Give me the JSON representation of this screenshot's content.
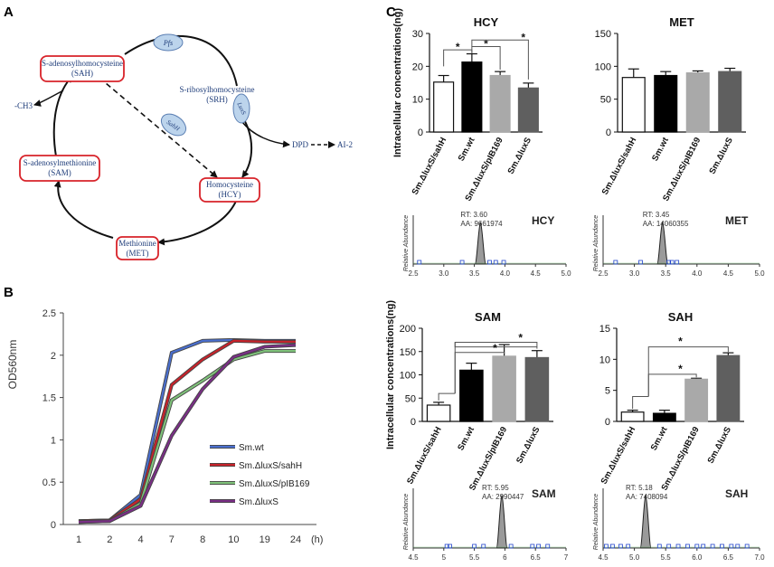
{
  "panels": {
    "A": "A",
    "B": "B",
    "C": "C"
  },
  "pathway": {
    "nodes": {
      "sah": [
        "S-adenosylhomocysteine",
        "(SAH)"
      ],
      "srh": [
        "S-ribosylhomocysteine",
        "(SRH)"
      ],
      "sam": [
        "S-adenosylmethionine",
        "(SAM)"
      ],
      "hcy": [
        "Homocysteine",
        "(HCY)"
      ],
      "met": [
        "Methionine",
        "(MET)"
      ],
      "ch3": "-CH3",
      "dpd": "DPD",
      "ai2": "AI-2"
    },
    "enzymes": {
      "pfs": "Pfs",
      "luxs": "LuxS",
      "sahh": "SahH"
    }
  },
  "chart_data": [
    {
      "id": "growth",
      "type": "line",
      "ylabel": "OD560nm",
      "xlabel": "(h)",
      "categories": [
        "1",
        "2",
        "4",
        "7",
        "8",
        "10",
        "19",
        "24"
      ],
      "ylim": [
        0,
        2.5
      ],
      "yticks": [
        "0",
        "0.5",
        "1",
        "1.5",
        "2",
        "2.5"
      ],
      "series": [
        {
          "name": "Sm.wt",
          "color": "#4a6fcf",
          "values": [
            0.04,
            0.05,
            0.35,
            2.03,
            2.17,
            2.18,
            2.17,
            2.17
          ]
        },
        {
          "name": "Sm.ΔluxS/sahH",
          "color": "#c8232b",
          "values": [
            0.04,
            0.05,
            0.3,
            1.65,
            1.95,
            2.17,
            2.16,
            2.16
          ]
        },
        {
          "name": "Sm.ΔluxS/pIB169",
          "color": "#7fc27a",
          "values": [
            0.03,
            0.04,
            0.25,
            1.47,
            1.7,
            1.95,
            2.05,
            2.05
          ]
        },
        {
          "name": "Sm.ΔluxS",
          "color": "#7a2f86",
          "values": [
            0.03,
            0.04,
            0.22,
            1.05,
            1.6,
            1.98,
            2.1,
            2.12
          ]
        }
      ]
    },
    {
      "id": "hcy",
      "type": "bar",
      "title": "HCY",
      "ylabel": "Intracellular concentrations(ng)",
      "categories": [
        "Sm.ΔluxS/sahH",
        "Sm.wt",
        "Sm.ΔluxS/pIB169",
        "Sm.ΔluxS"
      ],
      "values": [
        15.2,
        21.3,
        17.2,
        13.4
      ],
      "errors": [
        2.0,
        2.5,
        1.2,
        1.5
      ],
      "ylim": [
        0,
        30
      ],
      "yticks": [
        "0",
        "10",
        "20",
        "30"
      ],
      "significance": [
        "*",
        "*",
        "*"
      ]
    },
    {
      "id": "met",
      "type": "bar",
      "title": "MET",
      "categories": [
        "Sm.ΔluxS/sahH",
        "Sm.wt",
        "Sm.ΔluxS/pIB169",
        "Sm.ΔluxS"
      ],
      "values": [
        83,
        86,
        90,
        92
      ],
      "errors": [
        13,
        6,
        3,
        5
      ],
      "ylim": [
        0,
        150
      ],
      "yticks": [
        "0",
        "50",
        "100",
        "150"
      ]
    },
    {
      "id": "sam",
      "type": "bar",
      "title": "SAM",
      "ylabel": "Intracellular concentrations(ng)",
      "categories": [
        "Sm.ΔluxS/sahH",
        "Sm.wt",
        "Sm.ΔluxS/pIB169",
        "Sm.ΔluxS"
      ],
      "values": [
        35,
        110,
        140,
        137
      ],
      "errors": [
        6,
        15,
        25,
        15
      ],
      "ylim": [
        0,
        200
      ],
      "yticks": [
        "0",
        "50",
        "100",
        "150",
        "200"
      ],
      "significance": [
        "*",
        "*"
      ]
    },
    {
      "id": "sah",
      "type": "bar",
      "title": "SAH",
      "categories": [
        "Sm.ΔluxS/sahH",
        "Sm.wt",
        "Sm.ΔluxS/pIB169",
        "Sm.ΔluxS"
      ],
      "values": [
        1.5,
        1.3,
        6.8,
        10.6
      ],
      "errors": [
        0.3,
        0.5,
        0.15,
        0.45
      ],
      "ylim": [
        0,
        15
      ],
      "yticks": [
        "0",
        "5",
        "10",
        "15"
      ],
      "significance": [
        "*",
        "*"
      ]
    },
    {
      "id": "chrom_hcy",
      "type": "line",
      "title": "HCY",
      "ylabel": "Relative Abundance",
      "rt_label": "RT: 3.60",
      "aa_label": "AA: 9661974",
      "peak_rt": 3.6,
      "xlim": [
        2.5,
        5.0
      ],
      "xticks": [
        "2.5",
        "3.0",
        "3.5",
        "4.0",
        "4.5",
        "5.0"
      ]
    },
    {
      "id": "chrom_met",
      "type": "line",
      "title": "MET",
      "ylabel": "Relative Abundance",
      "rt_label": "RT: 3.45",
      "aa_label": "AA: 14060355",
      "peak_rt": 3.45,
      "xlim": [
        2.5,
        5.0
      ],
      "xticks": [
        "2.5",
        "3.0",
        "3.5",
        "4.0",
        "4.5",
        "5.0"
      ]
    },
    {
      "id": "chrom_sam",
      "type": "line",
      "title": "SAM",
      "ylabel": "Relative Abundance",
      "rt_label": "RT: 5.95",
      "aa_label": "AA: 2990447",
      "peak_rt": 5.95,
      "xlim": [
        4.5,
        7.0
      ],
      "xticks": [
        "4.5",
        "5",
        "5.5",
        "6",
        "6.5",
        "7"
      ]
    },
    {
      "id": "chrom_sah",
      "type": "line",
      "title": "SAH",
      "ylabel": "Relative Abundance",
      "rt_label": "RT: 5.18",
      "aa_label": "AA: 7408094",
      "peak_rt": 5.18,
      "xlim": [
        4.5,
        7.0
      ],
      "xticks": [
        "4.5",
        "5.0",
        "5.5",
        "6.0",
        "6.5",
        "7.0"
      ]
    }
  ]
}
